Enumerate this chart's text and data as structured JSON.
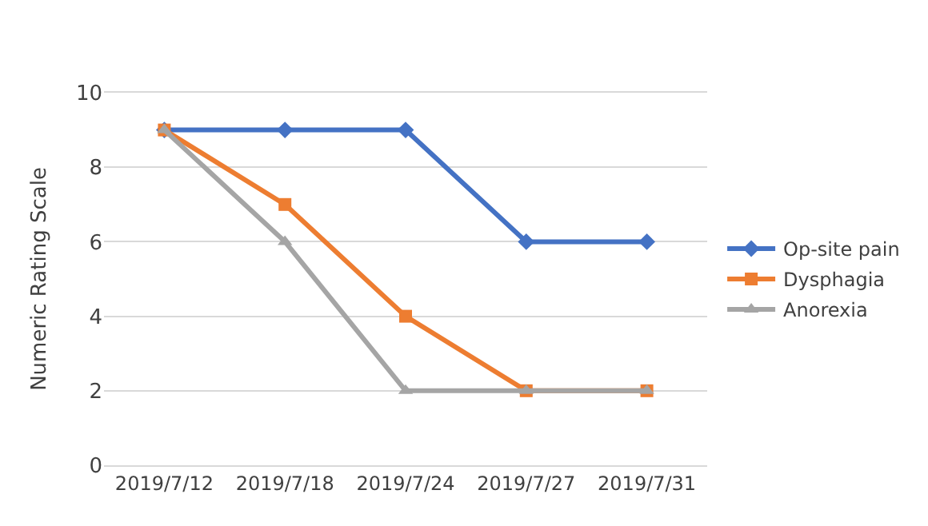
{
  "chart_data": {
    "type": "line",
    "ylabel": "Numeric Rating Scale",
    "categories": [
      "2019/7/12",
      "2019/7/18",
      "2019/7/24",
      "2019/7/27",
      "2019/7/31"
    ],
    "series": [
      {
        "name": "Op-site pain",
        "color": "#4472c4",
        "marker": "diamond",
        "values": [
          9,
          9,
          9,
          6,
          6
        ]
      },
      {
        "name": "Dysphagia",
        "color": "#ed7d31",
        "marker": "square",
        "values": [
          9,
          7,
          4,
          2,
          2
        ]
      },
      {
        "name": "Anorexia",
        "color": "#a5a5a5",
        "marker": "triangle",
        "values": [
          9,
          6,
          2,
          2,
          2
        ]
      }
    ],
    "ylim": [
      0,
      10
    ],
    "yticks": [
      0,
      2,
      4,
      6,
      8,
      10
    ],
    "grid": "y",
    "legend": "right"
  }
}
